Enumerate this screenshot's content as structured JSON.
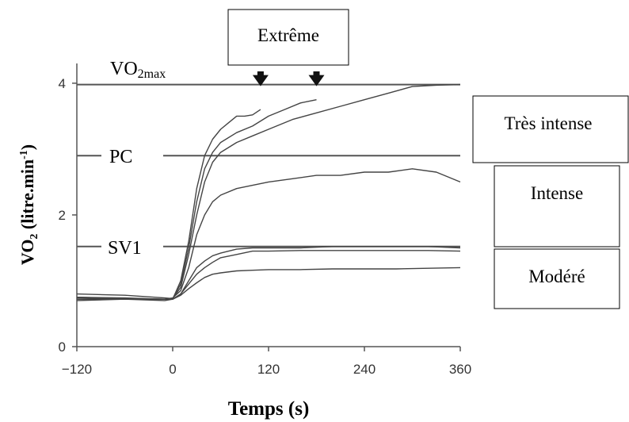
{
  "chart_data": {
    "type": "line",
    "xlabel": "Temps (s)",
    "ylabel_main": "VO",
    "ylabel_sub": "2",
    "ylabel_rest": " (litre.min",
    "ylabel_sup": "-1",
    "ylabel_close": ")",
    "xlim": [
      -120,
      360
    ],
    "ylim": [
      0,
      4.3
    ],
    "xticks": [
      {
        "value": -120,
        "label": "−120"
      },
      {
        "value": 0,
        "label": "0"
      },
      {
        "value": 120,
        "label": "120"
      },
      {
        "value": 240,
        "label": "240"
      },
      {
        "value": 360,
        "label": "360"
      }
    ],
    "yticks": [
      {
        "value": 0,
        "label": "0"
      },
      {
        "value": 2,
        "label": "2"
      },
      {
        "value": 4,
        "label": "4"
      }
    ],
    "thresholds": [
      {
        "name": "VO2max",
        "label_main": "VO",
        "label_sub": "2max",
        "value": 3.98
      },
      {
        "name": "PC",
        "label_main": "PC",
        "label_sub": "",
        "value": 2.9
      },
      {
        "name": "SV1",
        "label_main": "SV1",
        "label_sub": "",
        "value": 1.52
      }
    ],
    "arrows": [
      110,
      180
    ],
    "callout": "Extrême",
    "domains": [
      {
        "name": "tres-intense",
        "label": "Très intense"
      },
      {
        "name": "intense",
        "label": "Intense"
      },
      {
        "name": "modere",
        "label": "Modéré"
      }
    ],
    "series": [
      {
        "x": [
          -120,
          -60,
          -10,
          0,
          10,
          20,
          30,
          40,
          50,
          60,
          70,
          80,
          90,
          100,
          110
        ],
        "y": [
          0.72,
          0.72,
          0.7,
          0.72,
          1.0,
          1.6,
          2.4,
          2.9,
          3.15,
          3.3,
          3.4,
          3.5,
          3.5,
          3.52,
          3.6
        ]
      },
      {
        "x": [
          -120,
          -60,
          -10,
          0,
          10,
          20,
          30,
          40,
          50,
          60,
          80,
          100,
          120,
          140,
          160,
          180
        ],
        "y": [
          0.75,
          0.73,
          0.72,
          0.73,
          0.95,
          1.5,
          2.2,
          2.7,
          2.95,
          3.1,
          3.25,
          3.35,
          3.5,
          3.6,
          3.7,
          3.75
        ]
      },
      {
        "x": [
          -120,
          -60,
          -10,
          0,
          10,
          20,
          30,
          40,
          50,
          60,
          80,
          100,
          120,
          150,
          180,
          210,
          240,
          270,
          300,
          330,
          360
        ],
        "y": [
          0.8,
          0.78,
          0.74,
          0.73,
          0.9,
          1.4,
          2.0,
          2.5,
          2.8,
          2.95,
          3.1,
          3.2,
          3.3,
          3.45,
          3.55,
          3.65,
          3.75,
          3.85,
          3.95,
          3.97,
          3.98
        ]
      },
      {
        "x": [
          -120,
          -60,
          -10,
          0,
          10,
          20,
          30,
          40,
          50,
          60,
          80,
          100,
          120,
          150,
          180,
          210,
          240,
          270,
          300,
          330,
          360
        ],
        "y": [
          0.7,
          0.72,
          0.72,
          0.74,
          0.85,
          1.2,
          1.7,
          2.0,
          2.2,
          2.3,
          2.4,
          2.45,
          2.5,
          2.55,
          2.6,
          2.6,
          2.65,
          2.65,
          2.7,
          2.65,
          2.5
        ]
      },
      {
        "x": [
          -120,
          -60,
          -10,
          0,
          10,
          20,
          30,
          40,
          50,
          60,
          80,
          100,
          120,
          160,
          200,
          240,
          280,
          320,
          360
        ],
        "y": [
          0.75,
          0.74,
          0.72,
          0.72,
          0.8,
          1.0,
          1.2,
          1.3,
          1.38,
          1.42,
          1.48,
          1.5,
          1.5,
          1.5,
          1.52,
          1.52,
          1.52,
          1.52,
          1.5
        ]
      },
      {
        "x": [
          -120,
          -60,
          -10,
          0,
          10,
          20,
          30,
          40,
          50,
          60,
          80,
          100,
          120,
          160,
          200,
          240,
          280,
          320,
          360
        ],
        "y": [
          0.72,
          0.72,
          0.72,
          0.72,
          0.8,
          0.95,
          1.1,
          1.2,
          1.28,
          1.35,
          1.4,
          1.45,
          1.45,
          1.46,
          1.46,
          1.46,
          1.46,
          1.46,
          1.45
        ]
      },
      {
        "x": [
          -120,
          -60,
          -10,
          0,
          10,
          20,
          30,
          40,
          50,
          60,
          80,
          100,
          120,
          160,
          200,
          240,
          280,
          320,
          360
        ],
        "y": [
          0.74,
          0.73,
          0.72,
          0.72,
          0.78,
          0.88,
          0.97,
          1.05,
          1.1,
          1.12,
          1.15,
          1.16,
          1.17,
          1.17,
          1.18,
          1.18,
          1.18,
          1.19,
          1.2
        ]
      }
    ]
  }
}
